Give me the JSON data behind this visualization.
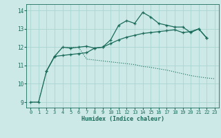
{
  "xlabel": "Humidex (Indice chaleur)",
  "bg_color": "#cce9e7",
  "grid_color": "#aad4d0",
  "line_color": "#1a6b5a",
  "xlim": [
    -0.5,
    23.5
  ],
  "ylim": [
    8.7,
    14.35
  ],
  "xticks": [
    0,
    1,
    2,
    3,
    4,
    5,
    6,
    7,
    8,
    9,
    10,
    11,
    12,
    13,
    14,
    15,
    16,
    17,
    18,
    19,
    20,
    21,
    22,
    23
  ],
  "yticks": [
    9,
    10,
    11,
    12,
    13,
    14
  ],
  "line1_x": [
    0,
    1,
    2,
    3,
    4,
    5,
    6,
    7,
    8,
    9,
    10,
    11,
    12,
    13,
    14,
    15,
    16,
    17,
    18,
    19,
    20,
    21,
    22
  ],
  "line1_y": [
    9.0,
    9.0,
    10.7,
    11.5,
    12.0,
    11.95,
    12.0,
    12.05,
    11.95,
    12.0,
    12.4,
    13.2,
    13.45,
    13.3,
    13.9,
    13.65,
    13.3,
    13.2,
    13.1,
    13.1,
    12.8,
    13.0,
    12.5
  ],
  "line2_x": [
    2,
    3,
    4,
    5,
    6,
    7,
    8,
    9,
    10,
    11,
    12,
    13,
    14,
    15,
    16,
    17,
    18,
    19,
    20,
    21,
    22
  ],
  "line2_y": [
    10.7,
    11.5,
    11.55,
    11.6,
    11.65,
    11.7,
    11.95,
    12.0,
    12.2,
    12.4,
    12.55,
    12.65,
    12.75,
    12.8,
    12.85,
    12.9,
    12.95,
    12.8,
    12.85,
    13.0,
    12.5
  ],
  "line3_x": [
    0,
    1,
    2,
    3,
    4,
    5,
    6,
    7,
    8,
    9,
    10,
    11,
    12,
    13,
    14,
    15,
    16,
    17,
    18,
    19,
    20,
    21,
    22,
    23
  ],
  "line3_y": [
    9.0,
    9.0,
    10.7,
    11.5,
    12.0,
    12.0,
    12.0,
    11.35,
    11.3,
    11.25,
    11.2,
    11.15,
    11.1,
    11.05,
    10.95,
    10.9,
    10.82,
    10.75,
    10.65,
    10.55,
    10.45,
    10.38,
    10.32,
    10.28
  ]
}
